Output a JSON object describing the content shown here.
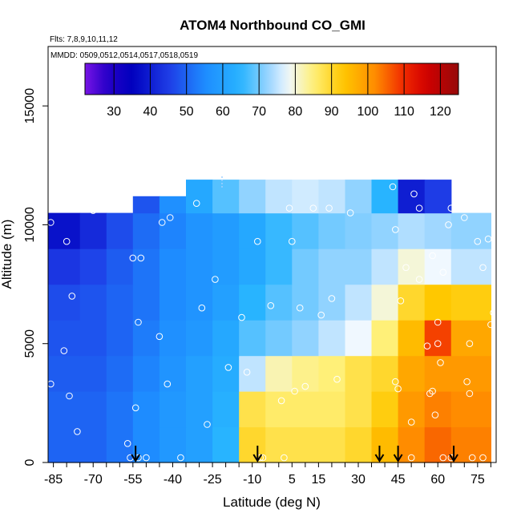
{
  "chart_data": {
    "type": "heatmap",
    "title": "ATOM4 Northbound CO_GMI",
    "flights_note": "Flts: 7,8,9,10,11,12",
    "dates_note": "MMDD: 0509,0512,0514,0517,0518,0519",
    "xlabel": "Latitude (deg N)",
    "ylabel": "Altitude (m)",
    "xlim": [
      -87,
      82
    ],
    "ylim": [
      0,
      17500
    ],
    "x_ticks": [
      -85,
      -70,
      -55,
      -40,
      -25,
      -10,
      5,
      15,
      30,
      45,
      60,
      75
    ],
    "x_tick_labels": [
      "-85",
      "-70",
      "-55",
      "-40",
      "-25",
      "-10",
      "5",
      "15",
      "30",
      "45",
      "60",
      "75"
    ],
    "y_ticks": [
      0,
      5000,
      10000,
      15000
    ],
    "y_tick_labels": [
      "0",
      "5000",
      "10000",
      "15000"
    ],
    "colorbar": {
      "min": 22,
      "max": 125,
      "ticks": [
        30,
        40,
        50,
        60,
        70,
        80,
        90,
        100,
        110,
        120
      ],
      "tick_labels": [
        "30",
        "40",
        "50",
        "60",
        "70",
        "80",
        "90",
        "100",
        "110",
        "120"
      ]
    },
    "field": {
      "lat_bounds": [
        -87,
        -75,
        -65,
        -55,
        -45,
        -35,
        -25,
        -15,
        -5,
        5,
        15,
        25,
        35,
        45,
        55,
        65,
        80
      ],
      "alt_bounds": [
        0,
        1500,
        3000,
        4500,
        6000,
        7500,
        9000,
        10500,
        12000
      ],
      "top_cap_alt": [
        10500,
        10500,
        10500,
        11200,
        11200,
        11900,
        11900,
        11900,
        11900,
        11900,
        11900,
        11900,
        11900,
        11900,
        11900,
        10500
      ],
      "values": [
        [
          50,
          50,
          52,
          55,
          58,
          60,
          65,
          90,
          88,
          88,
          88,
          90,
          95,
          102,
          105,
          103
        ],
        [
          50,
          50,
          52,
          55,
          58,
          60,
          64,
          88,
          86,
          86,
          86,
          88,
          92,
          100,
          103,
          102
        ],
        [
          49,
          49,
          51,
          54,
          57,
          60,
          63,
          75,
          82,
          84,
          85,
          88,
          90,
          98,
          100,
          100
        ],
        [
          48,
          48,
          50,
          53,
          56,
          58,
          62,
          68,
          70,
          72,
          75,
          78,
          85,
          95,
          108,
          98
        ],
        [
          47,
          48,
          50,
          52,
          55,
          57,
          60,
          65,
          68,
          70,
          72,
          75,
          80,
          90,
          93,
          92
        ],
        [
          44,
          46,
          49,
          52,
          55,
          57,
          59,
          62,
          66,
          70,
          72,
          72,
          75,
          80,
          78,
          75
        ],
        [
          38,
          42,
          47,
          51,
          54,
          57,
          59,
          62,
          66,
          68,
          70,
          71,
          72,
          74,
          73,
          72
        ],
        [
          38,
          40,
          44,
          48,
          56,
          62,
          68,
          72,
          75,
          76,
          75,
          72,
          65,
          40,
          45,
          55
        ]
      ]
    },
    "observations": [
      {
        "lat": -86,
        "alt": 10100
      },
      {
        "lat": -80,
        "alt": 9300
      },
      {
        "lat": -78,
        "alt": 7000
      },
      {
        "lat": -81,
        "alt": 4700
      },
      {
        "lat": -79,
        "alt": 2800
      },
      {
        "lat": -76,
        "alt": 1300
      },
      {
        "lat": -86,
        "alt": 3300
      },
      {
        "lat": -70,
        "alt": 10600
      },
      {
        "lat": -55,
        "alt": 8600
      },
      {
        "lat": -52,
        "alt": 8600
      },
      {
        "lat": -53,
        "alt": 5900
      },
      {
        "lat": -54,
        "alt": 2300
      },
      {
        "lat": -57,
        "alt": 800
      },
      {
        "lat": -56,
        "alt": 200
      },
      {
        "lat": -53,
        "alt": 200
      },
      {
        "lat": -50,
        "alt": 200
      },
      {
        "lat": -44,
        "alt": 10100
      },
      {
        "lat": -41,
        "alt": 10300
      },
      {
        "lat": -45,
        "alt": 5300
      },
      {
        "lat": -42,
        "alt": 3300
      },
      {
        "lat": -37,
        "alt": 200
      },
      {
        "lat": -31,
        "alt": 10900
      },
      {
        "lat": -29,
        "alt": 6500
      },
      {
        "lat": -27,
        "alt": 1600
      },
      {
        "lat": -24,
        "alt": 7700
      },
      {
        "lat": -19,
        "alt": 4000
      },
      {
        "lat": -14,
        "alt": 6100
      },
      {
        "lat": -12,
        "alt": 3800
      },
      {
        "lat": -8,
        "alt": 9300
      },
      {
        "lat": -6,
        "alt": 200
      },
      {
        "lat": -7,
        "alt": 200
      },
      {
        "lat": -3,
        "alt": 6600
      },
      {
        "lat": 1,
        "alt": 2600
      },
      {
        "lat": 2,
        "alt": 200
      },
      {
        "lat": 4,
        "alt": 10700
      },
      {
        "lat": 5,
        "alt": 9300
      },
      {
        "lat": 6,
        "alt": 3000
      },
      {
        "lat": 8,
        "alt": 6500
      },
      {
        "lat": 10,
        "alt": 3200
      },
      {
        "lat": 13,
        "alt": 10700
      },
      {
        "lat": 16,
        "alt": 6200
      },
      {
        "lat": 19,
        "alt": 10700
      },
      {
        "lat": 20,
        "alt": 6900
      },
      {
        "lat": 22,
        "alt": 3500
      },
      {
        "lat": 27,
        "alt": 10500
      },
      {
        "lat": 43,
        "alt": 11600
      },
      {
        "lat": 44,
        "alt": 9800
      },
      {
        "lat": 44,
        "alt": 3400
      },
      {
        "lat": 45,
        "alt": 3100
      },
      {
        "lat": 46,
        "alt": 6800
      },
      {
        "lat": 48,
        "alt": 8200
      },
      {
        "lat": 50,
        "alt": 1700
      },
      {
        "lat": 50,
        "alt": 200
      },
      {
        "lat": 51,
        "alt": 11300
      },
      {
        "lat": 53,
        "alt": 10700
      },
      {
        "lat": 53,
        "alt": 7700
      },
      {
        "lat": 56,
        "alt": 4900
      },
      {
        "lat": 57,
        "alt": 2900
      },
      {
        "lat": 58,
        "alt": 8700
      },
      {
        "lat": 58,
        "alt": 3000
      },
      {
        "lat": 59,
        "alt": 2000
      },
      {
        "lat": 60,
        "alt": 5900
      },
      {
        "lat": 60,
        "alt": 5000
      },
      {
        "lat": 61,
        "alt": 4200
      },
      {
        "lat": 62,
        "alt": 8000
      },
      {
        "lat": 62,
        "alt": 200
      },
      {
        "lat": 64,
        "alt": 10000
      },
      {
        "lat": 65,
        "alt": 10700
      },
      {
        "lat": 65,
        "alt": 200
      },
      {
        "lat": 70,
        "alt": 10300
      },
      {
        "lat": 71,
        "alt": 3400
      },
      {
        "lat": 72,
        "alt": 5000
      },
      {
        "lat": 72,
        "alt": 2900
      },
      {
        "lat": 73,
        "alt": 200
      },
      {
        "lat": 75,
        "alt": 9300
      },
      {
        "lat": 77,
        "alt": 8200
      },
      {
        "lat": 77,
        "alt": 200
      },
      {
        "lat": 79,
        "alt": 9400
      },
      {
        "lat": 80,
        "alt": 5800
      },
      {
        "lat": 81,
        "alt": 6300
      }
    ],
    "flight_markers_lat": [
      -54,
      -8,
      38,
      45,
      66
    ]
  }
}
